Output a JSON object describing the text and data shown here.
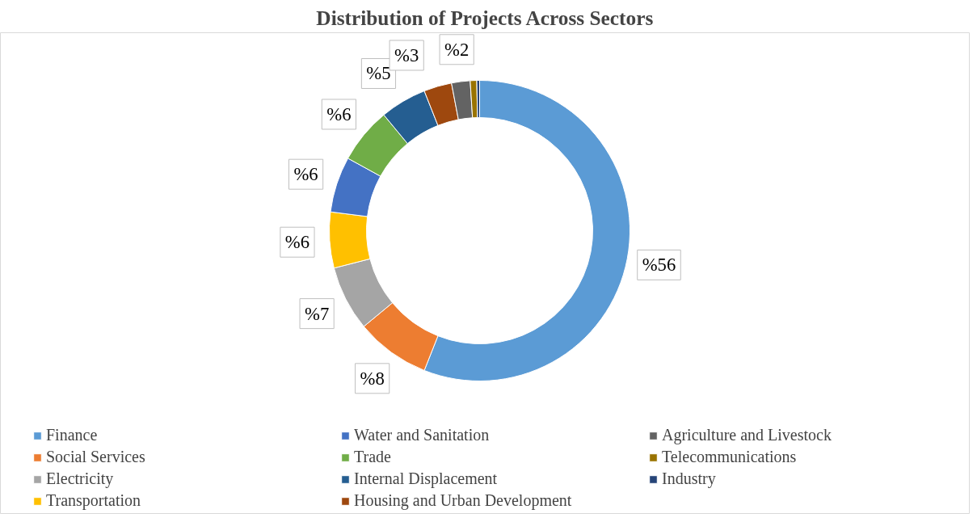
{
  "chart_data": {
    "type": "donut",
    "title": "Distribution of Projects Across Sectors",
    "categories": [
      "Finance",
      "Social Services",
      "Electricity",
      "Transportation",
      "Water and Sanitation",
      "Trade",
      "Internal Displacement",
      "Housing and Urban Development",
      "Agriculture and Livestock",
      "Telecommunications",
      "Industry"
    ],
    "values": [
      56,
      8,
      7,
      6,
      6,
      6,
      5,
      3,
      2,
      0.7,
      0.3
    ],
    "colors": [
      "#5b9bd5",
      "#ed7d31",
      "#a5a5a5",
      "#ffc000",
      "#4472c4",
      "#70ad47",
      "#255e91",
      "#9e480e",
      "#636363",
      "#997300",
      "#264478"
    ],
    "value_labels": [
      "%56",
      "%8",
      "%7",
      "%6",
      "%6",
      "%6",
      "%5",
      "%3",
      "%2",
      null,
      null
    ],
    "legend": "bottom"
  }
}
